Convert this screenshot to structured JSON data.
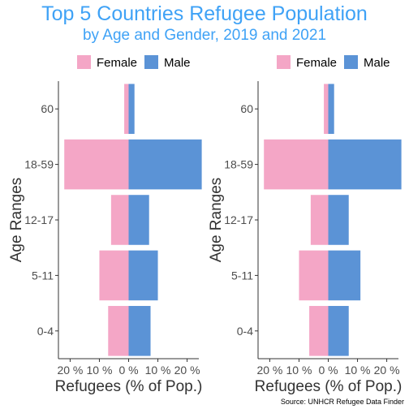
{
  "header": {
    "title": "Top 5 Countries Refugee Population",
    "subtitle": "by Age and Gender, 2019 and 2021"
  },
  "source": "Source: UNHCR Refugee Data Finder",
  "colors": {
    "female": "#f4a6c6",
    "male": "#5b93d6",
    "title": "#3fa2f6"
  },
  "chart_data": [
    {
      "type": "bar",
      "orientation": "horizontal",
      "xlabel": "Refugees (% of Pop.)",
      "ylabel": "Age Ranges",
      "categories": [
        "0-4",
        "5-11",
        "12-17",
        "18-59",
        "60"
      ],
      "xlim": [
        -24,
        24
      ],
      "x_ticks": [
        "20 %",
        "10 %",
        "0 %",
        "10 %",
        "20 %"
      ],
      "legend": {
        "position": "top",
        "entries": [
          "Female",
          "Male"
        ]
      },
      "series": [
        {
          "name": "Female",
          "values": [
            -7,
            -10,
            -6,
            -22,
            -1.5
          ]
        },
        {
          "name": "Male",
          "values": [
            7.5,
            10,
            7,
            25,
            2
          ]
        }
      ]
    },
    {
      "type": "bar",
      "orientation": "horizontal",
      "xlabel": "Refugees (% of Pop.)",
      "ylabel": "Age Ranges",
      "categories": [
        "0-4",
        "5-11",
        "12-17",
        "18-59",
        "60"
      ],
      "xlim": [
        -24,
        24
      ],
      "x_ticks": [
        "20 %",
        "10 %",
        "0 %",
        "10 %",
        "20 %"
      ],
      "legend": {
        "position": "top",
        "entries": [
          "Female",
          "Male"
        ]
      },
      "series": [
        {
          "name": "Female",
          "values": [
            -6.5,
            -10,
            -6,
            -22,
            -1.5
          ]
        },
        {
          "name": "Male",
          "values": [
            7,
            11,
            7,
            25,
            2
          ]
        }
      ]
    }
  ]
}
